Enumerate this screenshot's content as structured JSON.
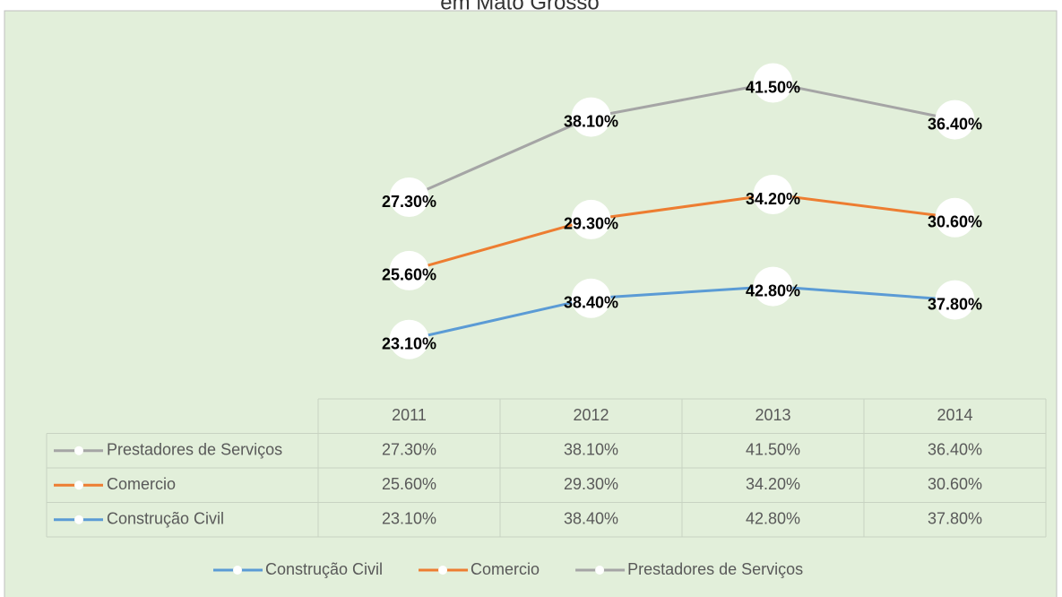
{
  "chart_data": {
    "type": "line",
    "stacked": true,
    "title": "em Mato Grosso",
    "categories": [
      "2011",
      "2012",
      "2013",
      "2014"
    ],
    "series": [
      {
        "name": "Construção Civil",
        "color": "#5b9bd5",
        "values": [
          23.1,
          38.4,
          42.8,
          37.8
        ],
        "value_labels": [
          "23.10%",
          "38.40%",
          "42.80%",
          "37.80%"
        ]
      },
      {
        "name": "Comercio",
        "color": "#ed7d31",
        "values": [
          25.6,
          29.3,
          34.2,
          30.6
        ],
        "value_labels": [
          "25.60%",
          "29.30%",
          "34.20%",
          "30.60%"
        ]
      },
      {
        "name": "Prestadores de Serviços",
        "color": "#a5a5a5",
        "values": [
          27.3,
          38.1,
          41.5,
          36.4
        ],
        "value_labels": [
          "27.30%",
          "38.10%",
          "41.50%",
          "36.40%"
        ]
      }
    ],
    "data_table": true,
    "legend": "bottom"
  }
}
